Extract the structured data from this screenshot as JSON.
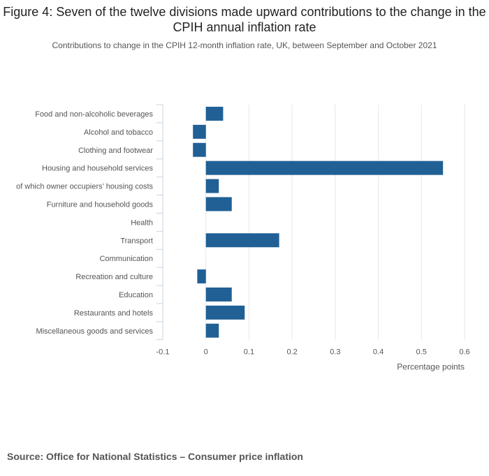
{
  "title": "Figure 4: Seven of the twelve divisions made upward contributions to the change in the CPIH annual inflation rate",
  "subtitle": "Contributions to change in the CPIH 12-month inflation rate, UK, between September and October 2021",
  "source": "Source: Office for National Statistics – Consumer price inflation",
  "chart_data": {
    "type": "bar",
    "orientation": "horizontal",
    "categories": [
      "Food and non-alcoholic beverages",
      "Alcohol and tobacco",
      "Clothing and footwear",
      "Housing and household services",
      "of which owner occupiers’ housing costs",
      "Furniture and household goods",
      "Health",
      "Transport",
      "Communication",
      "Recreation and culture",
      "Education",
      "Restaurants and hotels",
      "Miscellaneous goods and services"
    ],
    "values": [
      0.04,
      -0.03,
      -0.03,
      0.55,
      0.03,
      0.06,
      0.0,
      0.17,
      0.0,
      -0.02,
      0.06,
      0.09,
      0.03
    ],
    "xlim": [
      -0.1,
      0.6
    ],
    "xticks": [
      -0.1,
      0,
      0.1,
      0.2,
      0.3,
      0.4,
      0.5,
      0.6
    ],
    "xtick_labels": [
      "-0.1",
      "0",
      "0.1",
      "0.2",
      "0.3",
      "0.4",
      "0.5",
      "0.6"
    ],
    "xlabel": "Percentage points",
    "ylabel": "",
    "grid": true,
    "bar_color": "#206095",
    "grid_color": "#e6e6e6",
    "axis_color": "#c8d3de"
  }
}
